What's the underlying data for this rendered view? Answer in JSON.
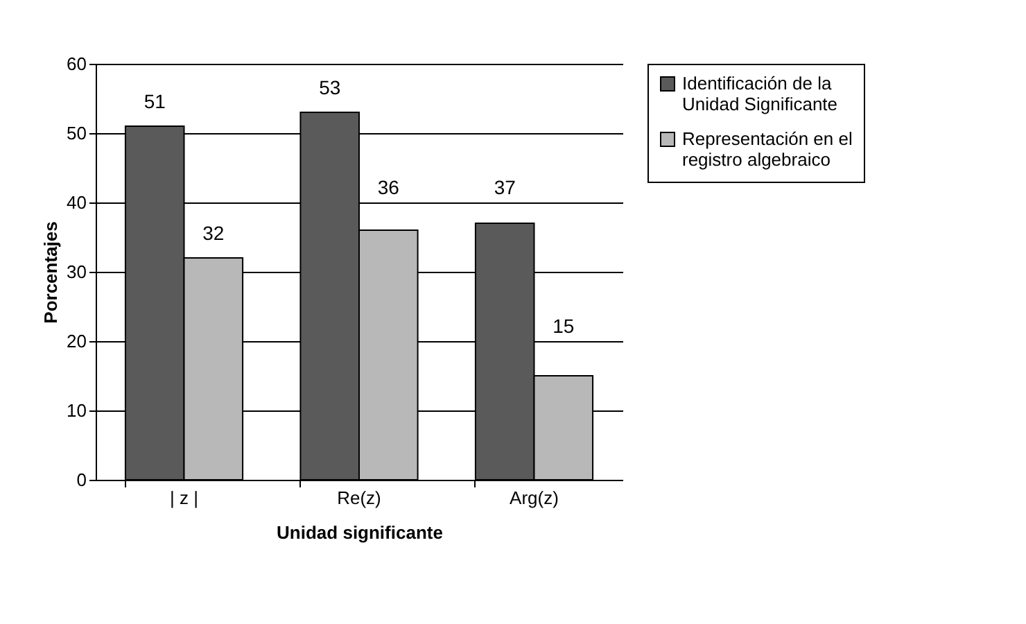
{
  "chart_data": {
    "type": "bar",
    "xlabel": "Unidad significante",
    "ylabel": "Porcentajes",
    "categories": [
      "| z |",
      "Re(z)",
      "Arg(z)"
    ],
    "series": [
      {
        "name": "Identificación de la Unidad Significante",
        "color": "#5a5a5a",
        "values": [
          51,
          53,
          37
        ]
      },
      {
        "name": "Representación en el registro algebraico",
        "color": "#b8b8b8",
        "values": [
          32,
          36,
          15
        ]
      }
    ],
    "ylim": [
      0,
      60
    ],
    "yticks": [
      0,
      10,
      20,
      30,
      40,
      50,
      60
    ],
    "grid": "y",
    "legend": "right",
    "data_labels": true
  }
}
